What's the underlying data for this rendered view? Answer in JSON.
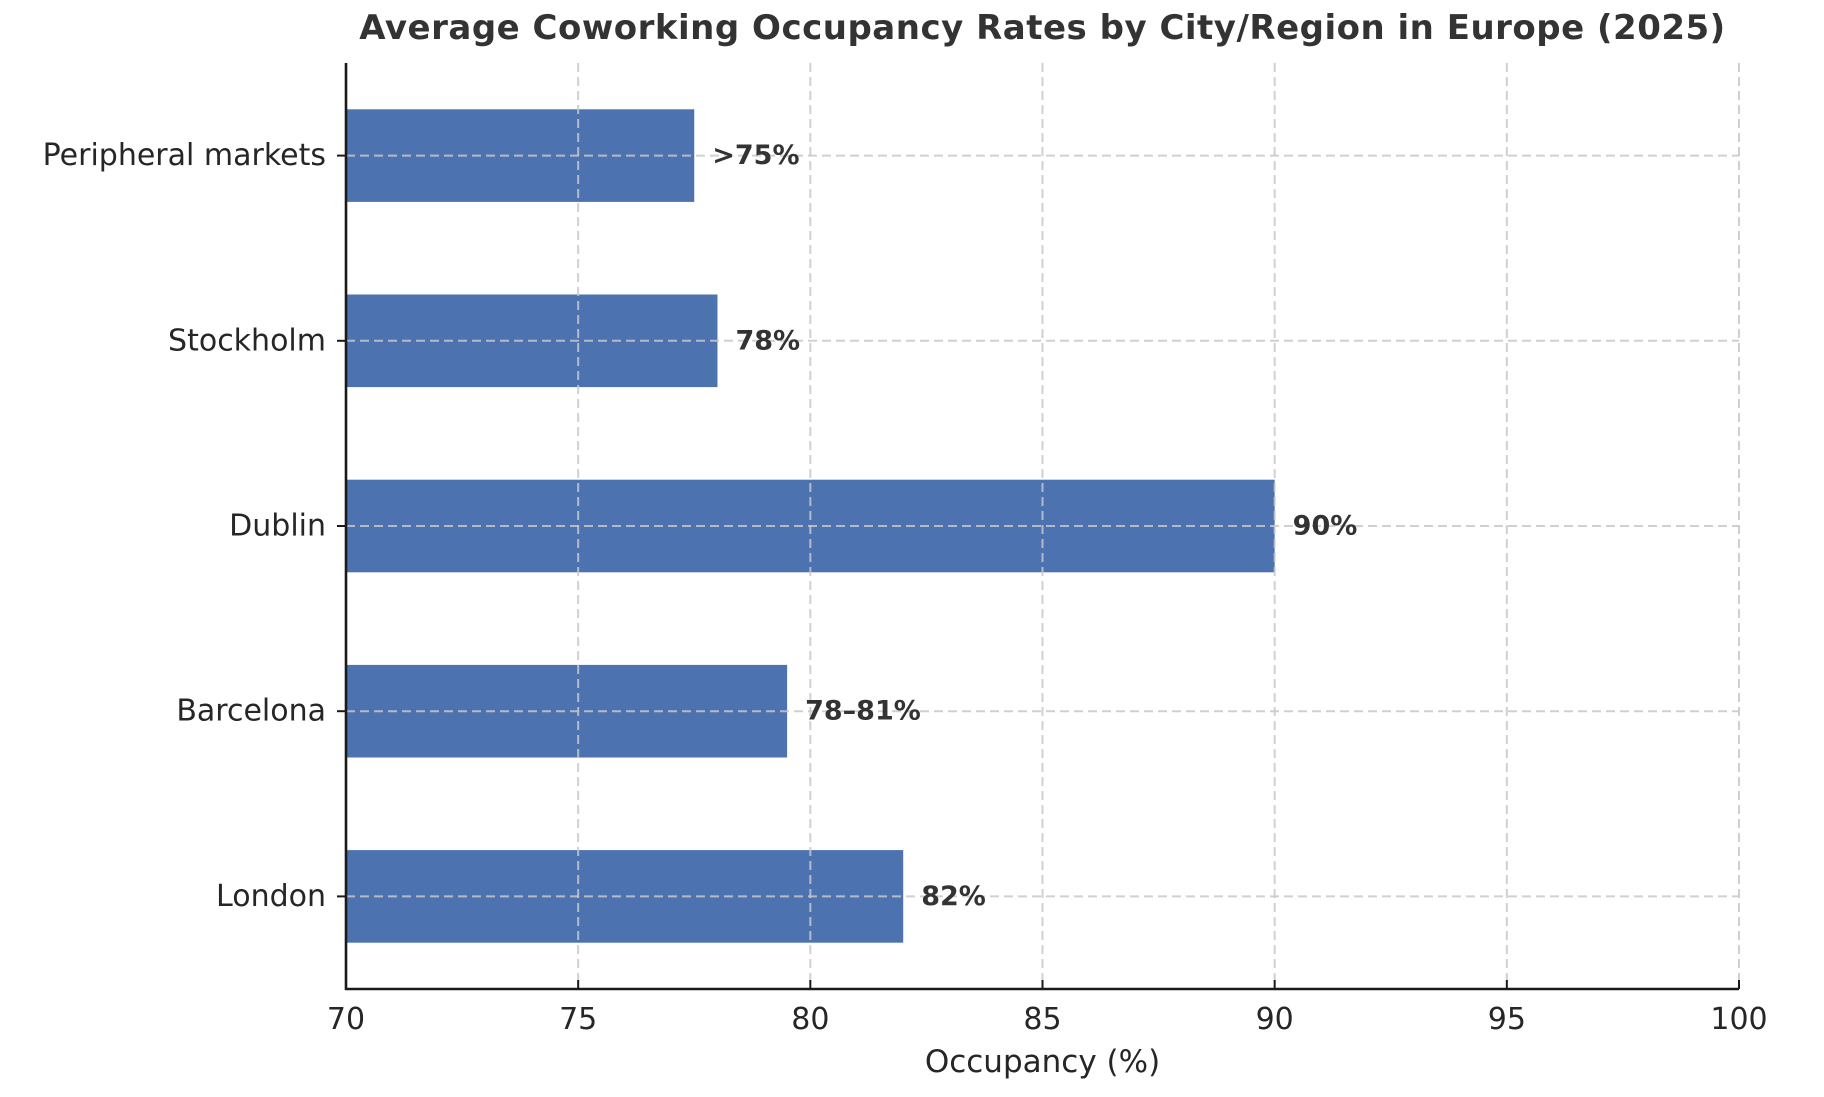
{
  "chart_data": {
    "type": "bar",
    "orientation": "horizontal",
    "title": "Average Coworking Occupancy Rates by City/Region in Europe (2025)",
    "xlabel": "Occupancy (%)",
    "categories": [
      "Peripheral markets",
      "Stockholm",
      "Dublin",
      "Barcelona",
      "London"
    ],
    "values": [
      77.5,
      78,
      90,
      79.5,
      82
    ],
    "bar_labels": [
      ">75%",
      "78%",
      "90%",
      "78–81%",
      "82%"
    ],
    "xlim": [
      70,
      100
    ],
    "xticks": [
      70,
      75,
      80,
      85,
      90,
      95,
      100
    ],
    "grid": true,
    "grid_style": "dashed",
    "legend": "none",
    "colors": {
      "bar": "#4c72b0",
      "grid": "#c8c8c8",
      "spine": "#1a1a1a",
      "title": "#333333",
      "text": "#262626",
      "background": "#ffffff"
    }
  }
}
